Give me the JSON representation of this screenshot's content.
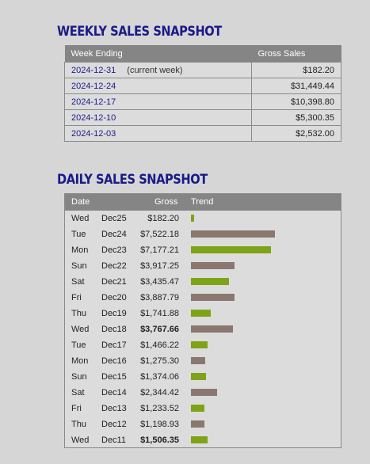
{
  "weekly": {
    "title": "WEEKLY SALES SNAPSHOT",
    "col_week": "Week Ending",
    "col_sales": "Gross Sales",
    "rows": [
      {
        "week": "2024-12-31",
        "note": "(current week)",
        "sales": "$182.20"
      },
      {
        "week": "2024-12-24",
        "note": "",
        "sales": "$31,449.44"
      },
      {
        "week": "2024-12-17",
        "note": "",
        "sales": "$10,398.80"
      },
      {
        "week": "2024-12-10",
        "note": "",
        "sales": "$5,300.35"
      },
      {
        "week": "2024-12-03",
        "note": "",
        "sales": "$2,532.00"
      }
    ]
  },
  "daily": {
    "title": "DAILY SALES SNAPSHOT",
    "col_date": "Date",
    "col_gross": "Gross",
    "col_trend": "Trend",
    "colors": {
      "green": "#7fa318",
      "brown": "#8a7870"
    },
    "rows": [
      {
        "day": "Wed",
        "date": "Dec25",
        "gross": "$182.20",
        "value": 182.2,
        "color": "green",
        "bold": false
      },
      {
        "day": "Tue",
        "date": "Dec24",
        "gross": "$7,522.18",
        "value": 7522.18,
        "color": "brown",
        "bold": false
      },
      {
        "day": "Mon",
        "date": "Dec23",
        "gross": "$7,177.21",
        "value": 7177.21,
        "color": "green",
        "bold": false
      },
      {
        "day": "Sun",
        "date": "Dec22",
        "gross": "$3,917.25",
        "value": 3917.25,
        "color": "brown",
        "bold": false
      },
      {
        "day": "Sat",
        "date": "Dec21",
        "gross": "$3,435.47",
        "value": 3435.47,
        "color": "green",
        "bold": false
      },
      {
        "day": "Fri",
        "date": "Dec20",
        "gross": "$3,887.79",
        "value": 3887.79,
        "color": "brown",
        "bold": false
      },
      {
        "day": "Thu",
        "date": "Dec19",
        "gross": "$1,741.88",
        "value": 1741.88,
        "color": "green",
        "bold": false
      },
      {
        "day": "Wed",
        "date": "Dec18",
        "gross": "$3,767.66",
        "value": 3767.66,
        "color": "brown",
        "bold": true
      },
      {
        "day": "Tue",
        "date": "Dec17",
        "gross": "$1,466.22",
        "value": 1466.22,
        "color": "green",
        "bold": false
      },
      {
        "day": "Mon",
        "date": "Dec16",
        "gross": "$1,275.30",
        "value": 1275.3,
        "color": "brown",
        "bold": false
      },
      {
        "day": "Sun",
        "date": "Dec15",
        "gross": "$1,374.06",
        "value": 1374.06,
        "color": "green",
        "bold": false
      },
      {
        "day": "Sat",
        "date": "Dec14",
        "gross": "$2,344.42",
        "value": 2344.42,
        "color": "brown",
        "bold": false
      },
      {
        "day": "Fri",
        "date": "Dec13",
        "gross": "$1,233.52",
        "value": 1233.52,
        "color": "green",
        "bold": false
      },
      {
        "day": "Thu",
        "date": "Dec12",
        "gross": "$1,198.93",
        "value": 1198.93,
        "color": "brown",
        "bold": false
      },
      {
        "day": "Wed",
        "date": "Dec11",
        "gross": "$1,506.35",
        "value": 1506.35,
        "color": "green",
        "bold": true
      }
    ]
  }
}
